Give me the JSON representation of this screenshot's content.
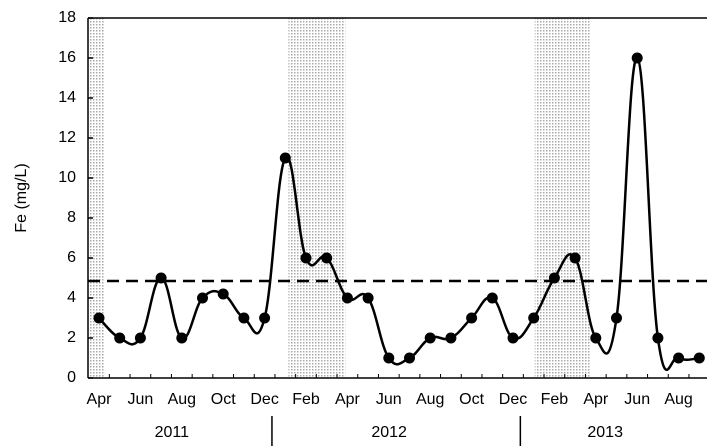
{
  "chart_data": {
    "type": "line",
    "y_label": "Fe (mg/L)",
    "categories": [
      "Apr",
      null,
      "Jun",
      null,
      "Aug",
      null,
      "Oct",
      null,
      "Dec",
      null,
      "Feb",
      null,
      "Apr",
      null,
      "Jun",
      null,
      "Aug",
      null,
      "Oct",
      null,
      "Dec",
      null,
      "Feb",
      null,
      "Apr",
      null,
      "Jun",
      null,
      "Aug",
      null
    ],
    "years": [
      "2011",
      "2012",
      "2013"
    ],
    "series": [
      {
        "name": "Fe",
        "color": "#000000",
        "values": [
          3,
          2,
          2,
          5,
          2,
          4,
          4.2,
          3,
          3,
          11,
          6,
          6,
          4,
          4,
          1,
          1,
          2,
          2,
          3,
          4,
          2,
          3,
          5,
          6,
          2,
          3,
          16,
          2,
          1,
          1
        ]
      }
    ],
    "reference_line": 4.85,
    "shaded_ranges": [
      [
        -0.5,
        0.25
      ],
      [
        9.15,
        11.9
      ],
      [
        21.05,
        23.7
      ]
    ],
    "ylim": [
      0,
      18
    ],
    "yticks": [
      0,
      2,
      4,
      6,
      8,
      10,
      12,
      14,
      16,
      18
    ],
    "grid": false
  }
}
